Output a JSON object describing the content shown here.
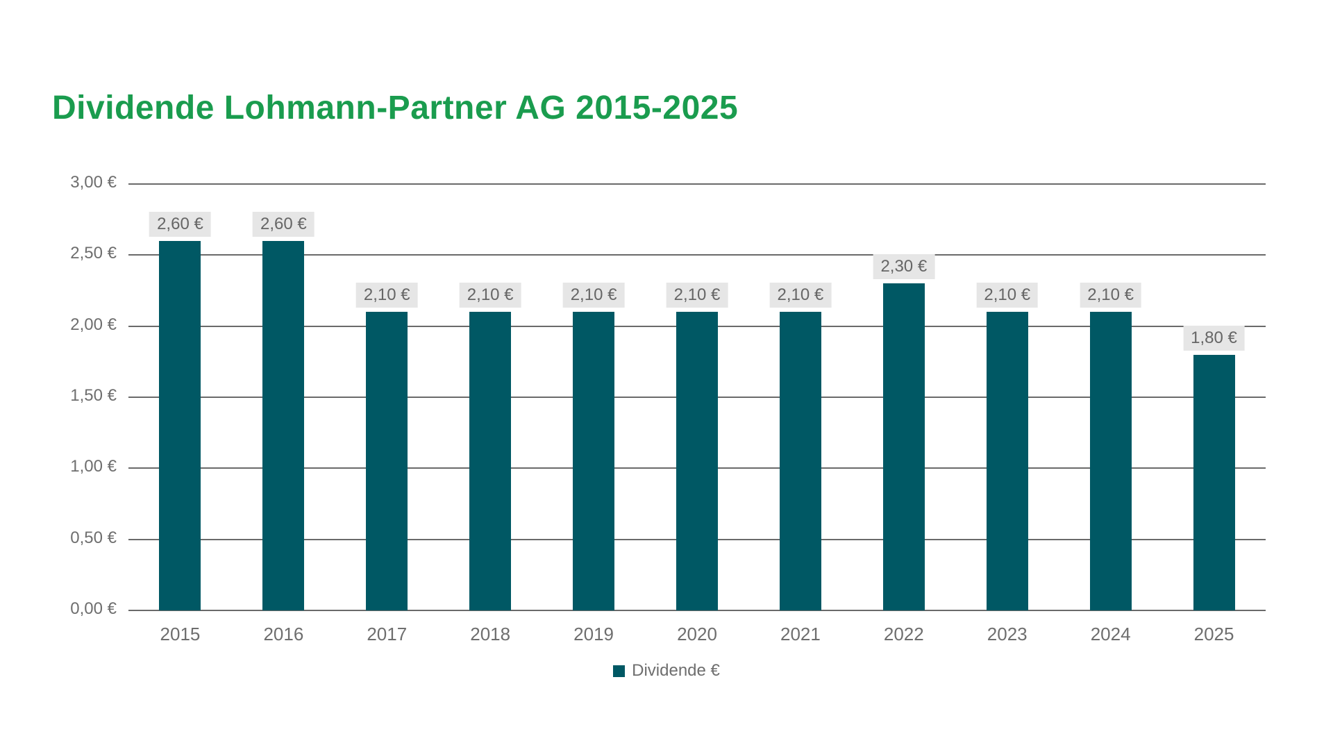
{
  "chart_data": {
    "type": "bar",
    "title": "Dividende Lohmann-Partner AG 2015-2025",
    "categories": [
      "2015",
      "2016",
      "2017",
      "2018",
      "2019",
      "2020",
      "2021",
      "2022",
      "2023",
      "2024",
      "2025"
    ],
    "values": [
      2.6,
      2.6,
      2.1,
      2.1,
      2.1,
      2.1,
      2.1,
      2.3,
      2.1,
      2.1,
      1.8
    ],
    "value_labels": [
      "2,60 €",
      "2,60 €",
      "2,10 €",
      "2,10 €",
      "2,10 €",
      "2,10 €",
      "2,10 €",
      "2,30 €",
      "2,10 €",
      "2,10 €",
      "1,80 €"
    ],
    "series_name": "Dividende €",
    "legend_label": "Dividende €",
    "legend_position": "bottom-center",
    "xlabel": "",
    "ylabel": "",
    "ylim": [
      0,
      3
    ],
    "grid": true,
    "y_ticks": [
      {
        "value": 0.0,
        "label": "0,00 €"
      },
      {
        "value": 0.5,
        "label": "0,50 €"
      },
      {
        "value": 1.0,
        "label": "1,00 €"
      },
      {
        "value": 1.5,
        "label": "1,50 €"
      },
      {
        "value": 2.0,
        "label": "2,00 €"
      },
      {
        "value": 2.5,
        "label": "2,50 €"
      },
      {
        "value": 3.0,
        "label": "3,00 €"
      }
    ],
    "colors": {
      "bar": "#005864",
      "title": "#1A9C4E",
      "grid_line": "#6A6A6A",
      "axis_text": "#6E6E6E",
      "data_label_text": "#666666",
      "data_label_bg": "#E6E6E6",
      "background": "#FFFFFF"
    }
  }
}
